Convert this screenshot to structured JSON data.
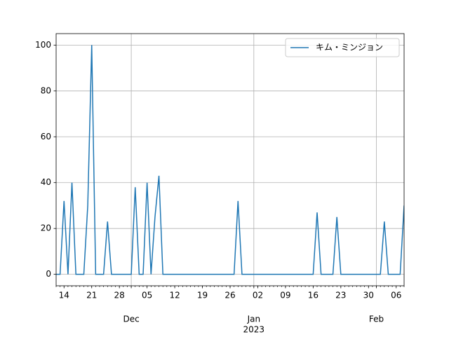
{
  "chart_data": {
    "type": "line",
    "x": [
      "2022-11-12",
      "2022-11-13",
      "2022-11-14",
      "2022-11-15",
      "2022-11-16",
      "2022-11-17",
      "2022-11-18",
      "2022-11-19",
      "2022-11-20",
      "2022-11-21",
      "2022-11-22",
      "2022-11-23",
      "2022-11-24",
      "2022-11-25",
      "2022-11-26",
      "2022-11-27",
      "2022-11-28",
      "2022-11-29",
      "2022-11-30",
      "2022-12-01",
      "2022-12-02",
      "2022-12-03",
      "2022-12-04",
      "2022-12-05",
      "2022-12-06",
      "2022-12-07",
      "2022-12-08",
      "2022-12-09",
      "2022-12-10",
      "2022-12-11",
      "2022-12-12",
      "2022-12-13",
      "2022-12-14",
      "2022-12-15",
      "2022-12-16",
      "2022-12-17",
      "2022-12-18",
      "2022-12-19",
      "2022-12-20",
      "2022-12-21",
      "2022-12-22",
      "2022-12-23",
      "2022-12-24",
      "2022-12-25",
      "2022-12-26",
      "2022-12-27",
      "2022-12-28",
      "2022-12-29",
      "2022-12-30",
      "2022-12-31",
      "2023-01-01",
      "2023-01-02",
      "2023-01-03",
      "2023-01-04",
      "2023-01-05",
      "2023-01-06",
      "2023-01-07",
      "2023-01-08",
      "2023-01-09",
      "2023-01-10",
      "2023-01-11",
      "2023-01-12",
      "2023-01-13",
      "2023-01-14",
      "2023-01-15",
      "2023-01-16",
      "2023-01-17",
      "2023-01-18",
      "2023-01-19",
      "2023-01-20",
      "2023-01-21",
      "2023-01-22",
      "2023-01-23",
      "2023-01-24",
      "2023-01-25",
      "2023-01-26",
      "2023-01-27",
      "2023-01-28",
      "2023-01-29",
      "2023-01-30",
      "2023-01-31",
      "2023-02-01",
      "2023-02-02",
      "2023-02-03",
      "2023-02-04",
      "2023-02-05",
      "2023-02-06",
      "2023-02-07",
      "2023-02-08"
    ],
    "series": [
      {
        "name": "キム・ミンジョン",
        "color": "#1f77b4",
        "values": [
          0,
          0,
          32,
          0,
          40,
          0,
          0,
          0,
          30,
          100,
          0,
          0,
          0,
          23,
          0,
          0,
          0,
          0,
          0,
          0,
          38,
          0,
          0,
          40,
          0,
          25,
          43,
          0,
          0,
          0,
          0,
          0,
          0,
          0,
          0,
          0,
          0,
          0,
          0,
          0,
          0,
          0,
          0,
          0,
          0,
          0,
          32,
          0,
          0,
          0,
          0,
          0,
          0,
          0,
          0,
          0,
          0,
          0,
          0,
          0,
          0,
          0,
          0,
          0,
          0,
          0,
          27,
          0,
          0,
          0,
          0,
          25,
          0,
          0,
          0,
          0,
          0,
          0,
          0,
          0,
          0,
          0,
          0,
          23,
          0,
          0,
          0,
          0,
          30
        ]
      }
    ],
    "xlim": [
      "2022-11-12",
      "2023-02-08"
    ],
    "xticks": [
      {
        "value": "2022-11-14",
        "label": "14"
      },
      {
        "value": "2022-11-21",
        "label": "21"
      },
      {
        "value": "2022-11-28",
        "label": "28"
      },
      {
        "value": "2022-12-05",
        "label": "05"
      },
      {
        "value": "2022-12-12",
        "label": "12"
      },
      {
        "value": "2022-12-19",
        "label": "19"
      },
      {
        "value": "2022-12-26",
        "label": "26"
      },
      {
        "value": "2023-01-02",
        "label": "02"
      },
      {
        "value": "2023-01-09",
        "label": "09"
      },
      {
        "value": "2023-01-16",
        "label": "16"
      },
      {
        "value": "2023-01-23",
        "label": "23"
      },
      {
        "value": "2023-01-30",
        "label": "30"
      },
      {
        "value": "2023-02-06",
        "label": "06"
      }
    ],
    "xmonth_ticks": [
      {
        "value": "2022-12-01",
        "label": "Dec"
      },
      {
        "value": "2023-01-01",
        "label": "Jan",
        "sublabel": "2023"
      },
      {
        "value": "2023-02-01",
        "label": "Feb"
      }
    ],
    "ylim": [
      -5,
      105
    ],
    "yticks": [
      0,
      20,
      40,
      60,
      80,
      100
    ],
    "grid": true,
    "legend": "upper right"
  }
}
